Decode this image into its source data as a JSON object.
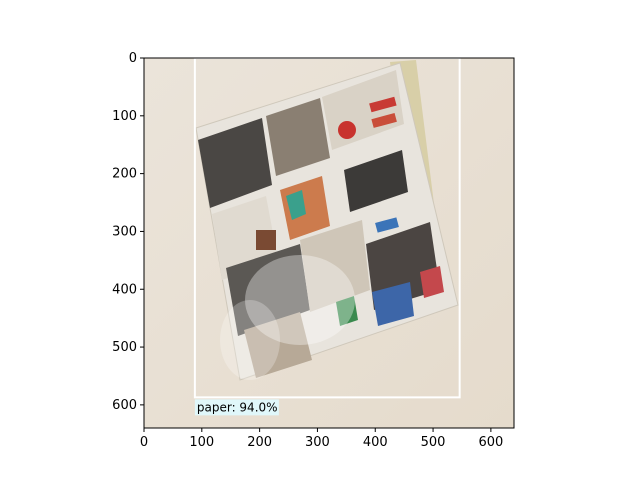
{
  "image": {
    "description_icon": "photo-icon",
    "background_color": "#e9e2d8",
    "paper_color": "#e6dfd3",
    "bbox_color": "#ffffff",
    "label_bg": "#e0f7fa"
  },
  "detection": {
    "label": "paper: 94.0%",
    "class": "paper",
    "confidence": 94.0,
    "box": {
      "x0": 88,
      "y0": 0,
      "x1": 546,
      "y1": 587
    }
  },
  "axes": {
    "x_ticks": [
      "0",
      "100",
      "200",
      "300",
      "400",
      "500",
      "600"
    ],
    "y_ticks": [
      "0",
      "100",
      "200",
      "300",
      "400",
      "500",
      "600"
    ],
    "xlim": [
      0,
      640
    ],
    "ylim": [
      640,
      0
    ]
  }
}
